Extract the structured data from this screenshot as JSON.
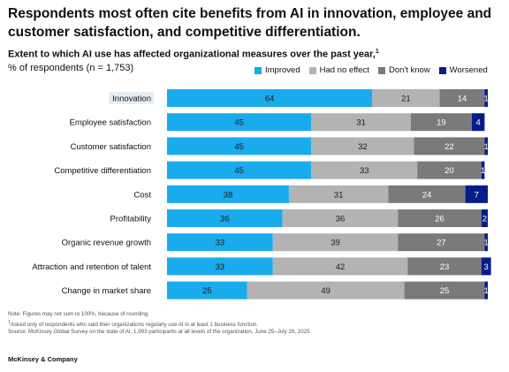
{
  "header": {
    "title": "Respondents most often cite benefits from AI in innovation, employee and customer satisfaction, and competitive differentiation.",
    "subtitle": "Extent to which AI use has affected organizational measures over the past year,",
    "subtitle_footnote": "1",
    "unit": "% of respondents (n = 1,753)"
  },
  "colors": {
    "Improved": "#1aabec",
    "Had no effect": "#b3b3b3",
    "Don't know": "#7a7a7a",
    "Worsened": "#051c8a",
    "category_highlight": "#e6edf3"
  },
  "chart_data": {
    "type": "bar",
    "orientation": "horizontal",
    "stacked": true,
    "categories": [
      "Innovation",
      "Employee satisfaction",
      "Customer satisfaction",
      "Competitive differentiation",
      "Cost",
      "Profitability",
      "Organic revenue growth",
      "Attraction and retention of talent",
      "Change in market share"
    ],
    "series": [
      {
        "name": "Improved",
        "values": [
          64,
          45,
          45,
          45,
          38,
          36,
          33,
          33,
          25
        ]
      },
      {
        "name": "Had no effect",
        "values": [
          21,
          31,
          32,
          33,
          31,
          36,
          39,
          42,
          49
        ]
      },
      {
        "name": "Don't know",
        "values": [
          14,
          19,
          22,
          20,
          24,
          26,
          27,
          23,
          25
        ]
      },
      {
        "name": "Worsened",
        "values": [
          1,
          4,
          1,
          1,
          7,
          2,
          1,
          3,
          1
        ]
      }
    ],
    "highlighted_category": "Innovation",
    "legend_position": "top-right",
    "grid": false,
    "data_labels": true
  },
  "notes": {
    "note": "Note: Figures may not sum to 100%, because of rounding.",
    "footnote_marker": "1",
    "footnote": "Asked only of respondents who said their organizations regularly use AI in at least 1 business function.",
    "source": "Source: McKinsey Global Survey on the state of AI, 1,993 participants at all levels of the organization, June 25–July 29, 2025"
  },
  "brand": "McKinsey & Company"
}
